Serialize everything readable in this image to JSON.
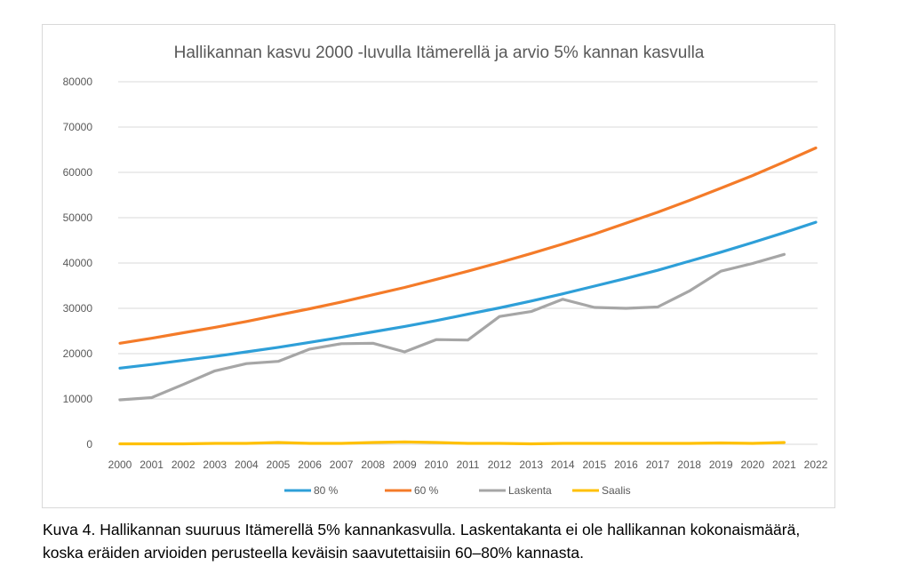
{
  "chart_data": {
    "type": "line",
    "title": "Hallikannan kasvu 2000 -luvulla Itämerellä ja arvio 5% kannan kasvulla",
    "xlabel": "",
    "ylabel": "",
    "ylim": [
      0,
      80000
    ],
    "yticks": [
      0,
      10000,
      20000,
      30000,
      40000,
      50000,
      60000,
      70000,
      80000
    ],
    "categories": [
      "2000",
      "2001",
      "2002",
      "2003",
      "2004",
      "2005",
      "2006",
      "2007",
      "2008",
      "2009",
      "2010",
      "2011",
      "2012",
      "2013",
      "2014",
      "2015",
      "2016",
      "2017",
      "2018",
      "2019",
      "2020",
      "2021",
      "2022"
    ],
    "grid": true,
    "legend_position": "bottom",
    "series": [
      {
        "name": "80 %",
        "color": "#2e9fd8",
        "values": [
          16800,
          17600,
          18500,
          19400,
          20400,
          21400,
          22500,
          23600,
          24800,
          26000,
          27300,
          28700,
          30100,
          31600,
          33200,
          34900,
          36600,
          38400,
          40400,
          42400,
          44500,
          46700,
          49000
        ]
      },
      {
        "name": "60 %",
        "color": "#f47b29",
        "values": [
          22300,
          23400,
          24600,
          25800,
          27100,
          28500,
          29900,
          31400,
          33000,
          34600,
          36400,
          38200,
          40100,
          42100,
          44200,
          46400,
          48800,
          51200,
          53800,
          56500,
          59300,
          62300,
          65400
        ]
      },
      {
        "name": "Laskenta",
        "color": "#a6a6a6",
        "values": [
          9800,
          10300,
          13200,
          16200,
          17800,
          18300,
          21000,
          22200,
          22300,
          20400,
          23100,
          23000,
          28200,
          29300,
          32000,
          30200,
          30000,
          30300,
          33800,
          38200,
          39900,
          41900,
          null
        ]
      },
      {
        "name": "Saalis",
        "color": "#ffc000",
        "values": [
          100,
          100,
          100,
          200,
          200,
          400,
          200,
          200,
          400,
          500,
          400,
          200,
          200,
          100,
          200,
          200,
          200,
          200,
          200,
          300,
          200,
          400,
          null
        ]
      }
    ]
  },
  "caption": {
    "line1": "Kuva 4. Hallikannan suuruus Itämerellä 5% kannankasvulla. Laskentakanta ei ole hallikannan kokonaismäärä,",
    "line2": "koska eräiden arvioiden perusteella keväisin saavutettaisiin 60–80% kannasta."
  }
}
